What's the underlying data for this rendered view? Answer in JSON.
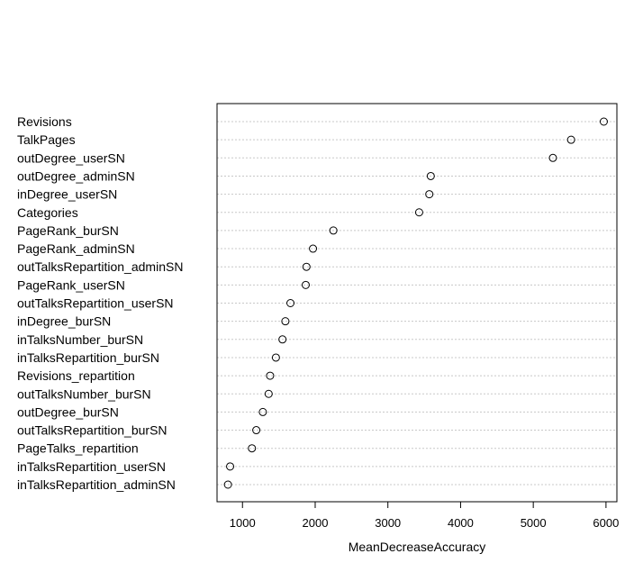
{
  "chart_data": {
    "type": "scatter",
    "title": "",
    "xlabel": "MeanDecreaseAccuracy",
    "ylabel": "",
    "xlim": [
      650,
      6150
    ],
    "xticks": [
      1000,
      2000,
      3000,
      4000,
      5000,
      6000
    ],
    "xtick_labels": [
      "1000",
      "2000",
      "3000",
      "4000",
      "5000",
      "6000"
    ],
    "grid": "horizontal dotted lines",
    "legend": "none",
    "categories": [
      "Revisions",
      "TalkPages",
      "outDegree_userSN",
      "outDegree_adminSN",
      "inDegree_userSN",
      "Categories",
      "PageRank_burSN",
      "PageRank_adminSN",
      "outTalksRepartition_adminSN",
      "PageRank_userSN",
      "outTalksRepartition_userSN",
      "inDegree_burSN",
      "inTalksNumber_burSN",
      "inTalksRepartition_burSN",
      "Revisions_repartition",
      "outTalksNumber_burSN",
      "outDegree_burSN",
      "outTalksRepartition_burSN",
      "PageTalks_repartition",
      "inTalksRepartition_userSN",
      "inTalksRepartition_adminSN"
    ],
    "values": [
      5970,
      5520,
      5270,
      3590,
      3570,
      3430,
      2250,
      1970,
      1880,
      1870,
      1660,
      1590,
      1550,
      1460,
      1380,
      1360,
      1280,
      1190,
      1130,
      830,
      800
    ]
  }
}
